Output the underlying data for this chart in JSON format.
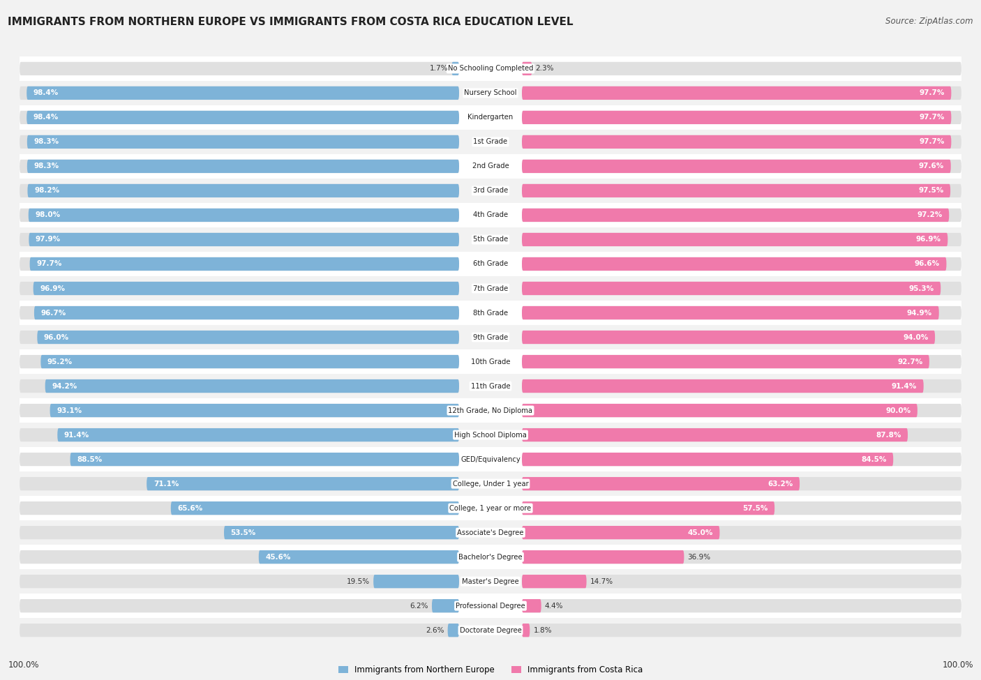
{
  "title": "IMMIGRANTS FROM NORTHERN EUROPE VS IMMIGRANTS FROM COSTA RICA EDUCATION LEVEL",
  "source": "Source: ZipAtlas.com",
  "categories": [
    "No Schooling Completed",
    "Nursery School",
    "Kindergarten",
    "1st Grade",
    "2nd Grade",
    "3rd Grade",
    "4th Grade",
    "5th Grade",
    "6th Grade",
    "7th Grade",
    "8th Grade",
    "9th Grade",
    "10th Grade",
    "11th Grade",
    "12th Grade, No Diploma",
    "High School Diploma",
    "GED/Equivalency",
    "College, Under 1 year",
    "College, 1 year or more",
    "Associate's Degree",
    "Bachelor's Degree",
    "Master's Degree",
    "Professional Degree",
    "Doctorate Degree"
  ],
  "left_values": [
    1.7,
    98.4,
    98.4,
    98.3,
    98.3,
    98.2,
    98.0,
    97.9,
    97.7,
    96.9,
    96.7,
    96.0,
    95.2,
    94.2,
    93.1,
    91.4,
    88.5,
    71.1,
    65.6,
    53.5,
    45.6,
    19.5,
    6.2,
    2.6
  ],
  "right_values": [
    2.3,
    97.7,
    97.7,
    97.7,
    97.6,
    97.5,
    97.2,
    96.9,
    96.6,
    95.3,
    94.9,
    94.0,
    92.7,
    91.4,
    90.0,
    87.8,
    84.5,
    63.2,
    57.5,
    45.0,
    36.9,
    14.7,
    4.4,
    1.8
  ],
  "left_color": "#7eb3d8",
  "right_color": "#f07aab",
  "bg_color": "#f2f2f2",
  "row_color_even": "#ffffff",
  "row_color_odd": "#f2f2f2",
  "bar_bg_color": "#e0e0e0",
  "legend_left": "Immigrants from Northern Europe",
  "legend_right": "Immigrants from Costa Rica"
}
